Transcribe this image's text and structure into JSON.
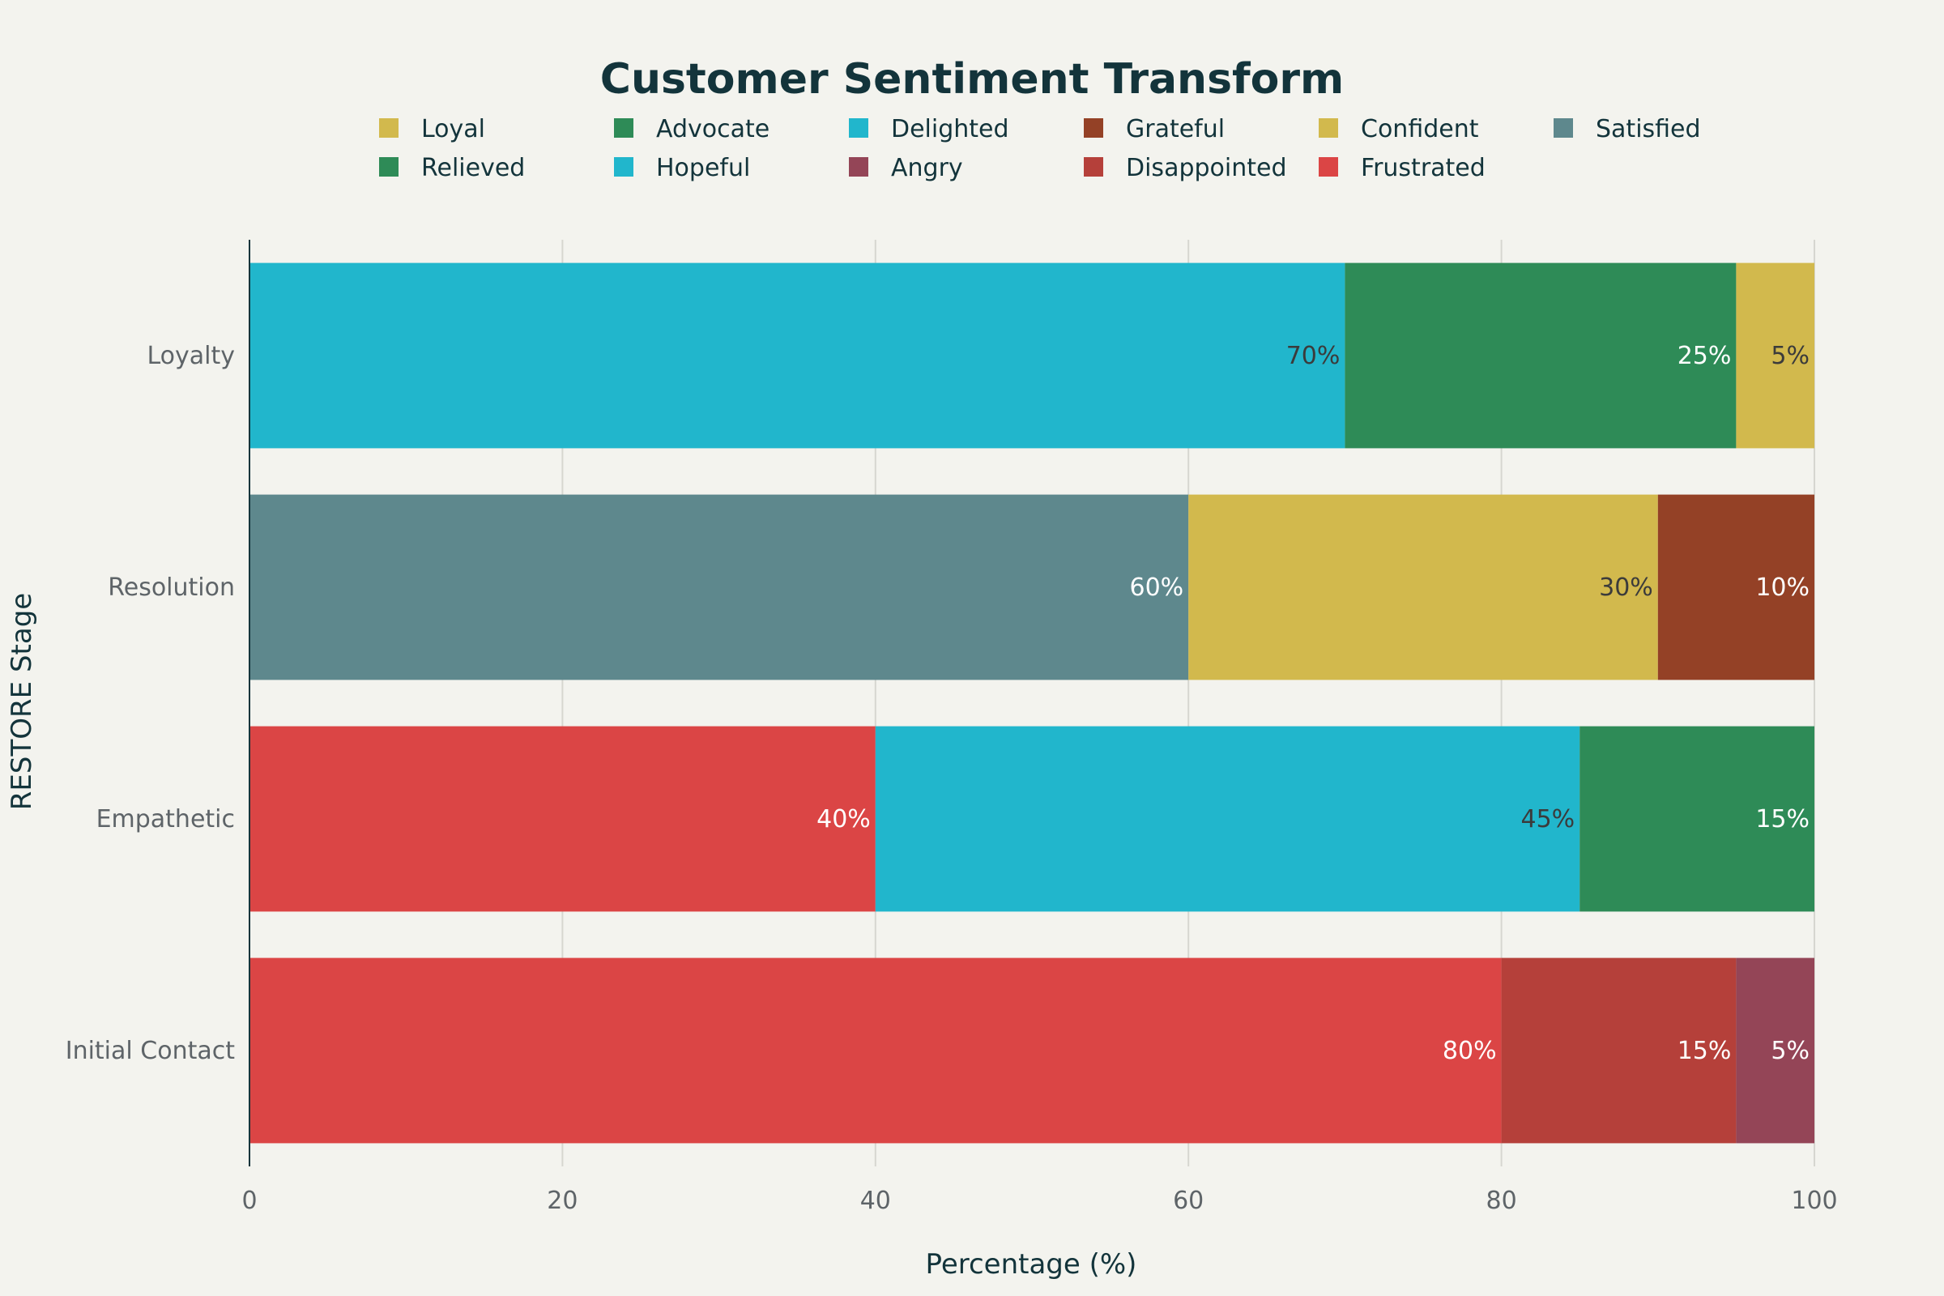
{
  "chart_data": {
    "type": "bar",
    "orientation": "horizontal",
    "stacked": true,
    "title": "Customer Sentiment Transform",
    "xlabel": "Percentage (%)",
    "ylabel": "RESTORE Stage",
    "xlim": [
      0,
      100
    ],
    "xticks": [
      "0",
      "20",
      "40",
      "60",
      "80",
      "100"
    ],
    "grid": true,
    "legend_position": "top",
    "categories": [
      "Initial Contact",
      "Empathetic",
      "Resolution",
      "Loyalty"
    ],
    "legend": [
      {
        "name": "Loyal",
        "color": "#d2b94d"
      },
      {
        "name": "Advocate",
        "color": "#2e8b57"
      },
      {
        "name": "Delighted",
        "color": "#21b6cc"
      },
      {
        "name": "Grateful",
        "color": "#944126"
      },
      {
        "name": "Confident",
        "color": "#d2b94d"
      },
      {
        "name": "Satisfied",
        "color": "#5e888d"
      },
      {
        "name": "Relieved",
        "color": "#2e8b57"
      },
      {
        "name": "Hopeful",
        "color": "#21b6cc"
      },
      {
        "name": "Angry",
        "color": "#944557"
      },
      {
        "name": "Disappointed",
        "color": "#b5403a"
      },
      {
        "name": "Frustrated",
        "color": "#db4545"
      }
    ],
    "stages": [
      {
        "category": "Initial Contact",
        "segments": [
          {
            "name": "Frustrated",
            "value": 80,
            "label": "80%",
            "color": "#db4545",
            "label_color": "#ffffff"
          },
          {
            "name": "Disappointed",
            "value": 15,
            "label": "15%",
            "color": "#b5403a",
            "label_color": "#ffffff"
          },
          {
            "name": "Angry",
            "value": 5,
            "label": "5%",
            "color": "#944557",
            "label_color": "#ffffff"
          }
        ]
      },
      {
        "category": "Empathetic",
        "segments": [
          {
            "name": "Frustrated",
            "value": 40,
            "label": "40%",
            "color": "#db4545",
            "label_color": "#ffffff"
          },
          {
            "name": "Hopeful",
            "value": 45,
            "label": "45%",
            "color": "#21b6cc",
            "label_color": "#3b3b3b"
          },
          {
            "name": "Relieved",
            "value": 15,
            "label": "15%",
            "color": "#2e8b57",
            "label_color": "#ffffff"
          }
        ]
      },
      {
        "category": "Resolution",
        "segments": [
          {
            "name": "Satisfied",
            "value": 60,
            "label": "60%",
            "color": "#5e888d",
            "label_color": "#ffffff"
          },
          {
            "name": "Confident",
            "value": 30,
            "label": "30%",
            "color": "#d2b94d",
            "label_color": "#3b3b3b"
          },
          {
            "name": "Grateful",
            "value": 10,
            "label": "10%",
            "color": "#944126",
            "label_color": "#ffffff"
          }
        ]
      },
      {
        "category": "Loyalty",
        "segments": [
          {
            "name": "Delighted",
            "value": 70,
            "label": "70%",
            "color": "#21b6cc",
            "label_color": "#3b3b3b"
          },
          {
            "name": "Advocate",
            "value": 25,
            "label": "25%",
            "color": "#2e8b57",
            "label_color": "#ffffff"
          },
          {
            "name": "Loyal",
            "value": 5,
            "label": "5%",
            "color": "#d2b94d",
            "label_color": "#3b3b3b"
          }
        ]
      }
    ]
  }
}
